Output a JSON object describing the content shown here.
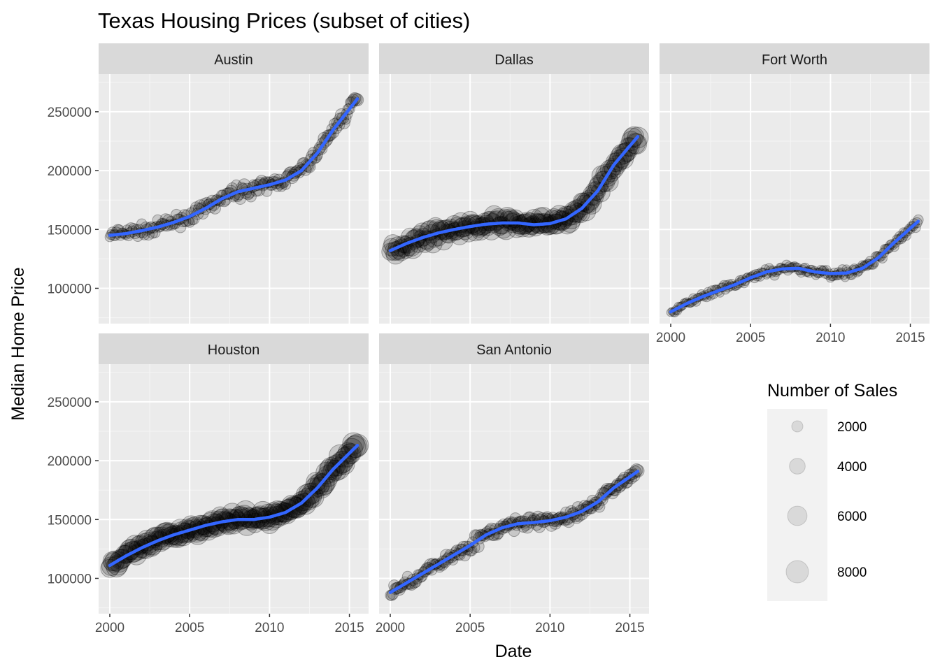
{
  "chart_data": {
    "type": "scatter",
    "title": "Texas Housing Prices (subset of cities)",
    "xlabel": "Date",
    "ylabel": "Median Home Price",
    "xlim": [
      1999.3,
      2016.2
    ],
    "ylim": [
      70000,
      282000
    ],
    "x_ticks": [
      2000,
      2005,
      2010,
      2015
    ],
    "y_ticks": [
      100000,
      150000,
      200000,
      250000
    ],
    "grid": true,
    "facet_layout": "3 columns, 2 rows, fixed scales",
    "marker_color": "#000000",
    "marker_alpha": 0.15,
    "smooth_color": "#3366FF",
    "panel_background": "#EBEBEB",
    "strip_background": "#D9D9D9",
    "legend": {
      "title": "Number of Sales",
      "placement": "right",
      "items": [
        {
          "label": "2000",
          "value": 2000
        },
        {
          "label": "4000",
          "value": 4000
        },
        {
          "label": "6000",
          "value": 6000
        },
        {
          "label": "8000",
          "value": 8000
        }
      ]
    },
    "facets": [
      {
        "name": "Austin",
        "trend": [
          [
            2000,
            145000
          ],
          [
            2001,
            146500
          ],
          [
            2002,
            149000
          ],
          [
            2003,
            152000
          ],
          [
            2004,
            156000
          ],
          [
            2005,
            161000
          ],
          [
            2006,
            168000
          ],
          [
            2007,
            176000
          ],
          [
            2008,
            182000
          ],
          [
            2009,
            185000
          ],
          [
            2010,
            188000
          ],
          [
            2011,
            192000
          ],
          [
            2012,
            200000
          ],
          [
            2013,
            215000
          ],
          [
            2014,
            235000
          ],
          [
            2015.5,
            261000
          ]
        ],
        "sales_range": [
          800,
          2500
        ],
        "scatter": 5000
      },
      {
        "name": "Dallas",
        "trend": [
          [
            2000,
            132000
          ],
          [
            2001,
            138000
          ],
          [
            2002,
            143000
          ],
          [
            2003,
            147000
          ],
          [
            2004,
            150000
          ],
          [
            2005,
            152500
          ],
          [
            2006,
            154500
          ],
          [
            2007,
            155500
          ],
          [
            2008,
            155500
          ],
          [
            2009,
            154000
          ],
          [
            2010,
            155000
          ],
          [
            2011,
            159000
          ],
          [
            2012,
            168000
          ],
          [
            2013,
            183000
          ],
          [
            2014,
            205000
          ],
          [
            2015.5,
            229000
          ]
        ],
        "sales_range": [
          3000,
          7000
        ],
        "scatter": 6000
      },
      {
        "name": "Fort Worth",
        "trend": [
          [
            2000,
            80000
          ],
          [
            2001,
            87000
          ],
          [
            2002,
            93000
          ],
          [
            2003,
            98000
          ],
          [
            2004,
            103000
          ],
          [
            2005,
            109000
          ],
          [
            2006,
            114000
          ],
          [
            2007,
            116500
          ],
          [
            2008,
            117000
          ],
          [
            2009,
            114000
          ],
          [
            2010,
            112500
          ],
          [
            2011,
            113000
          ],
          [
            2012,
            117000
          ],
          [
            2013,
            126000
          ],
          [
            2014,
            139000
          ],
          [
            2015.5,
            157000
          ]
        ],
        "sales_range": [
          500,
          1700
        ],
        "scatter": 3500
      },
      {
        "name": "Houston",
        "trend": [
          [
            2000,
            111000
          ],
          [
            2001,
            119000
          ],
          [
            2002,
            126000
          ],
          [
            2003,
            132000
          ],
          [
            2004,
            137000
          ],
          [
            2005,
            141000
          ],
          [
            2006,
            145000
          ],
          [
            2007,
            148000
          ],
          [
            2008,
            150000
          ],
          [
            2009,
            150000
          ],
          [
            2010,
            152000
          ],
          [
            2011,
            156000
          ],
          [
            2012,
            164000
          ],
          [
            2013,
            177000
          ],
          [
            2014,
            193000
          ],
          [
            2015.5,
            213000
          ]
        ],
        "sales_range": [
          3500,
          8000
        ],
        "scatter": 5000
      },
      {
        "name": "San Antonio",
        "trend": [
          [
            2000,
            88000
          ],
          [
            2001,
            96000
          ],
          [
            2002,
            104000
          ],
          [
            2003,
            112000
          ],
          [
            2004,
            120000
          ],
          [
            2005,
            128000
          ],
          [
            2006,
            137000
          ],
          [
            2007,
            143000
          ],
          [
            2008,
            146500
          ],
          [
            2009,
            147500
          ],
          [
            2010,
            149000
          ],
          [
            2011,
            152000
          ],
          [
            2012,
            157000
          ],
          [
            2013,
            165000
          ],
          [
            2014,
            177000
          ],
          [
            2015.5,
            191000
          ]
        ],
        "sales_range": [
          1000,
          2600
        ],
        "scatter": 5000
      }
    ]
  }
}
